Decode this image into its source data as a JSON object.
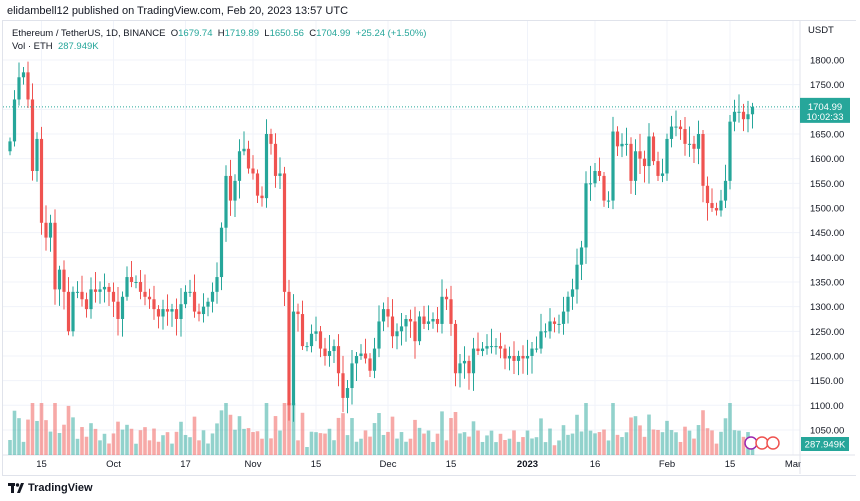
{
  "header": {
    "published": "elidambell12 published on TradingView.com, Feb 20, 2023 13:57 UTC"
  },
  "legend": {
    "symbol": "Ethereum / TetherUS, 1D, BINANCE",
    "open_label": "O",
    "open": "1679.74",
    "high_label": "H",
    "high": "1719.89",
    "low_label": "L",
    "low": "1650.56",
    "close_label": "C",
    "close": "1704.99",
    "change": "+25.24 (+1.50%)",
    "vol_label": "Vol · ETH",
    "vol": "287.949K"
  },
  "axis": {
    "currency": "USDT",
    "last_price": "1704.99",
    "countdown": "10:02:33",
    "vol_badge": "287.949K"
  },
  "footer": {
    "brand": "TradingView"
  },
  "colors": {
    "up": "#26a69a",
    "down": "#ef5350"
  },
  "chart_data": {
    "type": "candlestick",
    "title": "Ethereum / TetherUS, 1D, BINANCE",
    "x_start": "2022-09-08",
    "x_end": "2023-02-20",
    "ylim": [
      1030,
      1830
    ],
    "y_ticks": [
      1050,
      1100,
      1150,
      1200,
      1250,
      1300,
      1350,
      1400,
      1450,
      1500,
      1550,
      1600,
      1650,
      1700,
      1750,
      1800
    ],
    "x_ticks": [
      {
        "label": "15",
        "day": 7
      },
      {
        "label": "Oct",
        "day": 23
      },
      {
        "label": "17",
        "day": 39
      },
      {
        "label": "Nov",
        "day": 54
      },
      {
        "label": "15",
        "day": 68
      },
      {
        "label": "Dec",
        "day": 84
      },
      {
        "label": "15",
        "day": 98
      },
      {
        "label": "2023",
        "day": 115
      },
      {
        "label": "16",
        "day": 130
      },
      {
        "label": "Feb",
        "day": 146
      },
      {
        "label": "15",
        "day": 160
      },
      {
        "label": "Mar",
        "day": 174
      }
    ],
    "close": [
      1635,
      1720,
      1765,
      1775,
      1720,
      1575,
      1640,
      1470,
      1440,
      1470,
      1335,
      1375,
      1330,
      1250,
      1330,
      1330,
      1315,
      1295,
      1335,
      1330,
      1335,
      1340,
      1330,
      1310,
      1275,
      1320,
      1360,
      1350,
      1350,
      1330,
      1320,
      1315,
      1295,
      1280,
      1295,
      1290,
      1295,
      1275,
      1305,
      1330,
      1330,
      1290,
      1285,
      1300,
      1310,
      1330,
      1360,
      1460,
      1565,
      1515,
      1555,
      1615,
      1620,
      1580,
      1570,
      1525,
      1520,
      1650,
      1630,
      1565,
      1570,
      1330,
      1100,
      1290,
      1285,
      1220,
      1220,
      1245,
      1250,
      1215,
      1200,
      1210,
      1220,
      1165,
      1115,
      1135,
      1185,
      1200,
      1205,
      1195,
      1170,
      1215,
      1270,
      1295,
      1280,
      1240,
      1250,
      1260,
      1275,
      1270,
      1230,
      1280,
      1265,
      1270,
      1275,
      1265,
      1320,
      1315,
      1265,
      1165,
      1185,
      1190,
      1165,
      1215,
      1210,
      1215,
      1220,
      1220,
      1220,
      1215,
      1195,
      1200,
      1190,
      1200,
      1195,
      1200,
      1215,
      1215,
      1250,
      1250,
      1270,
      1265,
      1265,
      1290,
      1320,
      1335,
      1385,
      1420,
      1550,
      1550,
      1575,
      1565,
      1515,
      1515,
      1655,
      1625,
      1630,
      1630,
      1555,
      1615,
      1600,
      1585,
      1645,
      1595,
      1565,
      1570,
      1640,
      1665,
      1665,
      1660,
      1630,
      1630,
      1620,
      1650,
      1545,
      1510,
      1500,
      1495,
      1515,
      1555,
      1675,
      1695,
      1695,
      1680,
      1690,
      1705
    ]
  }
}
